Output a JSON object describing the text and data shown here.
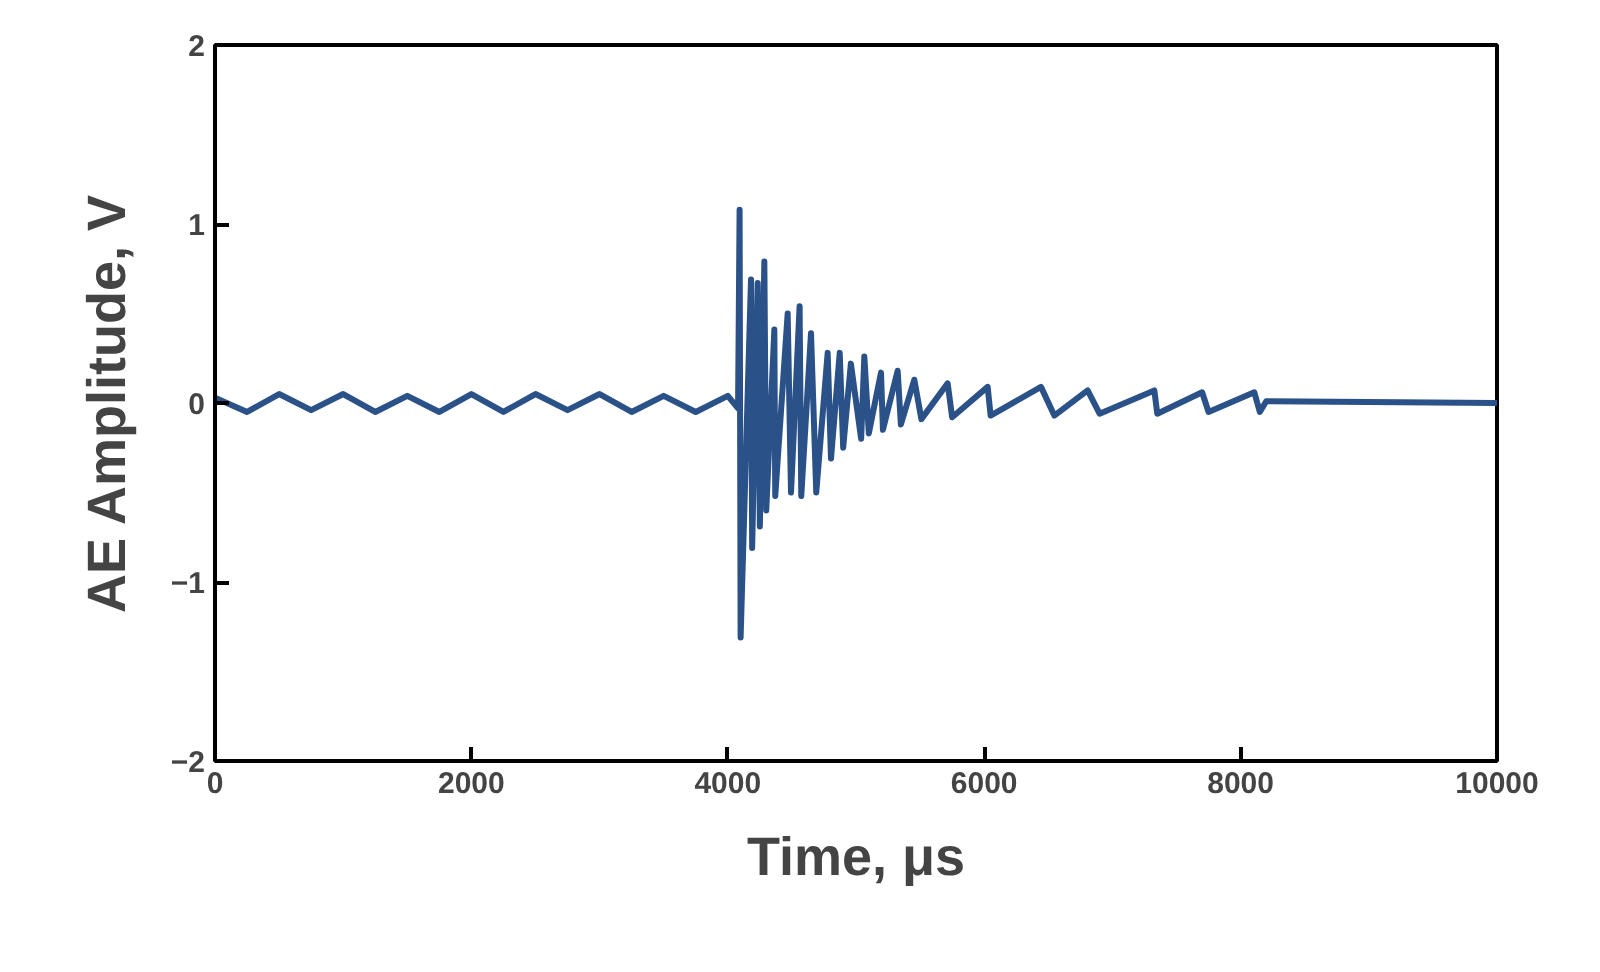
{
  "chart_data": {
    "type": "line",
    "xlabel": "Time, μs",
    "ylabel": "AE Amplitude, V",
    "xlim": [
      0,
      10000
    ],
    "xticks": [
      0,
      2000,
      4000,
      6000,
      8000,
      10000
    ],
    "ylim": [
      -2,
      2
    ],
    "yticks": [
      -2,
      -1,
      0,
      1,
      2
    ],
    "grid": false,
    "marker": "none",
    "line_style": "solid",
    "series": [
      {
        "color": "#2b5189",
        "x": [
          0,
          250,
          500,
          750,
          1000,
          1250,
          1500,
          1750,
          2000,
          2250,
          2500,
          2750,
          3000,
          3250,
          3500,
          3750,
          4000,
          4080,
          4092,
          4100,
          4181,
          4190,
          4233,
          4250,
          4285,
          4300,
          4363,
          4370,
          4467,
          4493,
          4560,
          4573,
          4649,
          4690,
          4779,
          4805,
          4873,
          4900,
          4960,
          5040,
          5065,
          5100,
          5195,
          5210,
          5325,
          5350,
          5455,
          5510,
          5715,
          5750,
          6027,
          6050,
          6443,
          6547,
          6807,
          6900,
          7327,
          7350,
          7700,
          7750,
          8107,
          8150,
          8200,
          10000
        ],
        "values": [
          0.03,
          -0.05,
          0.05,
          -0.04,
          0.05,
          -0.05,
          0.04,
          -0.05,
          0.05,
          -0.05,
          0.05,
          -0.04,
          0.05,
          -0.05,
          0.04,
          -0.05,
          0.04,
          -0.03,
          1.08,
          -1.31,
          0.69,
          -0.81,
          0.67,
          -0.69,
          0.79,
          -0.6,
          0.41,
          -0.52,
          0.5,
          -0.5,
          0.54,
          -0.52,
          0.39,
          -0.5,
          0.28,
          -0.31,
          0.28,
          -0.25,
          0.22,
          -0.2,
          0.26,
          -0.17,
          0.17,
          -0.15,
          0.18,
          -0.12,
          0.13,
          -0.09,
          0.11,
          -0.08,
          0.09,
          -0.07,
          0.09,
          -0.07,
          0.07,
          -0.06,
          0.07,
          -0.06,
          0.06,
          -0.05,
          0.06,
          -0.05,
          0.01,
          0.0
        ]
      }
    ]
  }
}
